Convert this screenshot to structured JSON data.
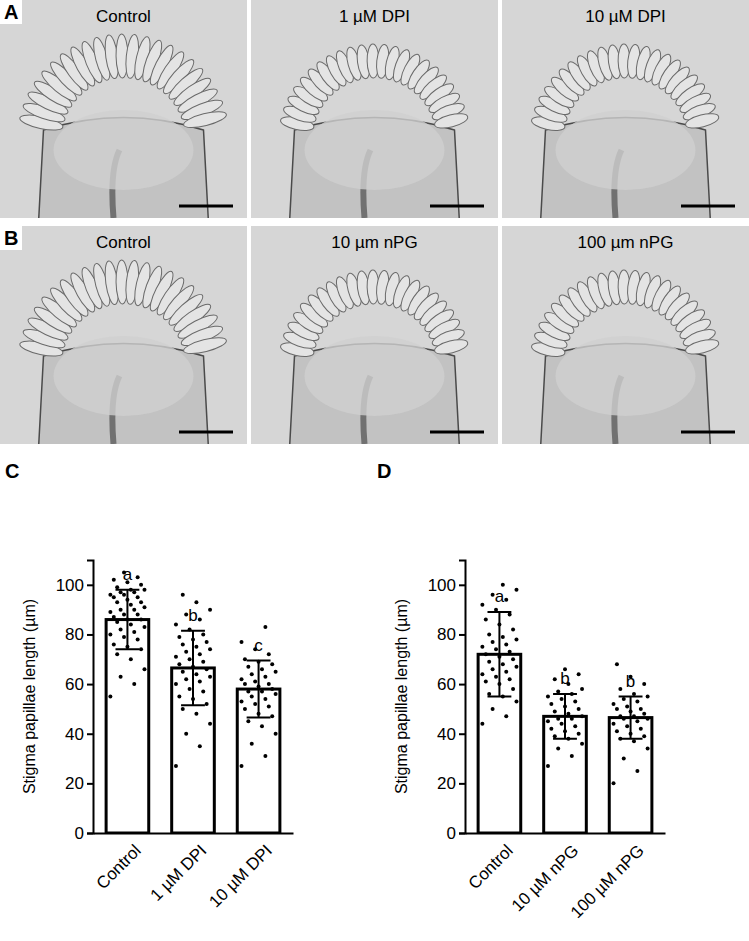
{
  "images": [
    {
      "panel": "A",
      "labels": [
        "Control",
        "1 µM DPI",
        "10 µM DPI"
      ]
    },
    {
      "panel": "B",
      "labels": [
        "Control",
        "10 µm nPG",
        "100 µm nPG"
      ]
    }
  ],
  "chart_data": [
    {
      "type": "bar",
      "panel": "C",
      "y_label": "Stigma papillae length (µm)",
      "color": "#000000",
      "categories": [
        "Control",
        "1 µM DPI",
        "10 µM DPI"
      ],
      "values": [
        86,
        66.5,
        58
      ],
      "errors": [
        12,
        15,
        11.5
      ],
      "annotations": [
        "a",
        "b",
        "c"
      ],
      "points": [
        [
          55,
          60,
          63,
          66,
          70,
          72,
          74,
          75,
          76,
          78,
          79,
          80,
          81,
          82,
          83,
          84,
          85,
          86,
          86,
          87,
          88,
          88,
          89,
          90,
          90,
          91,
          92,
          93,
          93,
          94,
          95,
          95,
          96,
          96,
          97,
          97,
          98,
          98,
          99,
          100,
          101,
          102,
          103,
          105
        ],
        [
          27,
          35,
          40,
          44,
          48,
          50,
          52,
          54,
          55,
          57,
          58,
          60,
          61,
          62,
          63,
          64,
          65,
          66,
          67,
          68,
          69,
          70,
          71,
          72,
          73,
          74,
          75,
          76,
          77,
          78,
          79,
          80,
          82,
          84,
          86,
          88,
          90,
          93,
          96
        ],
        [
          27,
          31,
          36,
          40,
          43,
          45,
          47,
          48,
          50,
          51,
          52,
          53,
          54,
          55,
          56,
          57,
          57,
          58,
          59,
          60,
          60,
          61,
          62,
          63,
          64,
          65,
          66,
          67,
          68,
          69,
          70,
          72,
          74,
          77,
          83
        ]
      ],
      "ylim": [
        0,
        110
      ],
      "yticks": [
        0,
        20,
        40,
        60,
        80,
        100
      ]
    },
    {
      "type": "bar",
      "panel": "D",
      "y_label": "Stigma papillae length (µm)",
      "color": "#000000",
      "categories": [
        "Control",
        "10 µM nPG",
        "100 µM nPG"
      ],
      "values": [
        72,
        47,
        46.5
      ],
      "errors": [
        17,
        9,
        8.5
      ],
      "annotations": [
        "a",
        "b",
        "b"
      ],
      "points": [
        [
          44,
          47,
          50,
          53,
          55,
          56,
          58,
          60,
          61,
          62,
          63,
          64,
          65,
          66,
          67,
          68,
          69,
          70,
          71,
          72,
          73,
          74,
          75,
          76,
          77,
          78,
          79,
          80,
          82,
          84,
          86,
          88,
          90,
          92,
          94,
          96,
          98,
          100
        ],
        [
          27,
          31,
          34,
          36,
          38,
          39,
          40,
          41,
          42,
          43,
          44,
          45,
          46,
          46,
          47,
          48,
          49,
          50,
          51,
          52,
          53,
          54,
          55,
          56,
          57,
          58,
          60,
          62,
          64,
          66
        ],
        [
          20,
          25,
          30,
          34,
          37,
          38,
          39,
          40,
          41,
          42,
          43,
          44,
          45,
          46,
          46,
          47,
          47,
          48,
          49,
          50,
          50,
          51,
          52,
          53,
          54,
          55,
          56,
          58,
          60,
          63,
          68
        ]
      ],
      "ylim": [
        0,
        110
      ],
      "yticks": [
        0,
        20,
        40,
        60,
        80,
        100
      ]
    }
  ]
}
